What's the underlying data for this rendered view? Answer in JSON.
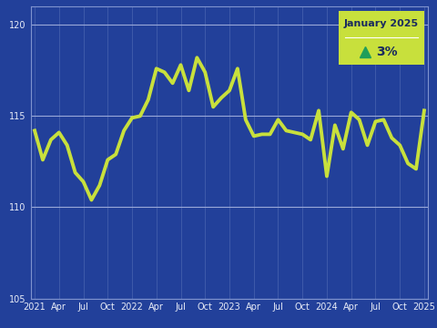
{
  "chart_data": {
    "type": "line",
    "categories": [
      "2021",
      null,
      null,
      "Apr",
      null,
      null,
      "Jul",
      null,
      null,
      "Oct",
      null,
      null,
      "2022",
      null,
      null,
      "Apr",
      null,
      null,
      "Jul",
      null,
      null,
      "Oct",
      null,
      null,
      "2023",
      null,
      null,
      "Apr",
      null,
      null,
      "Jul",
      null,
      null,
      "Oct",
      null,
      null,
      "2024",
      null,
      null,
      "Apr",
      null,
      null,
      "Jul",
      null,
      null,
      "Oct",
      null,
      null,
      "2025"
    ],
    "values": [
      114.2,
      112.6,
      113.7,
      114.1,
      113.4,
      111.9,
      111.4,
      110.4,
      111.2,
      112.6,
      112.9,
      114.2,
      114.9,
      115.0,
      115.9,
      117.6,
      117.4,
      116.8,
      117.8,
      116.4,
      118.2,
      117.4,
      115.5,
      116.0,
      116.4,
      117.6,
      114.8,
      113.9,
      114.0,
      114.0,
      114.8,
      114.2,
      114.1,
      114.0,
      113.7,
      115.3,
      111.7,
      114.5,
      113.2,
      115.2,
      114.8,
      113.4,
      114.7,
      114.8,
      113.8,
      113.4,
      112.4,
      112.1,
      115.3
    ],
    "color": "#c8e03c",
    "ylim": [
      105,
      121
    ],
    "yticks": [
      105,
      110,
      115,
      120
    ],
    "grid": true,
    "annotations": [
      "January 2025",
      "3%"
    ]
  }
}
